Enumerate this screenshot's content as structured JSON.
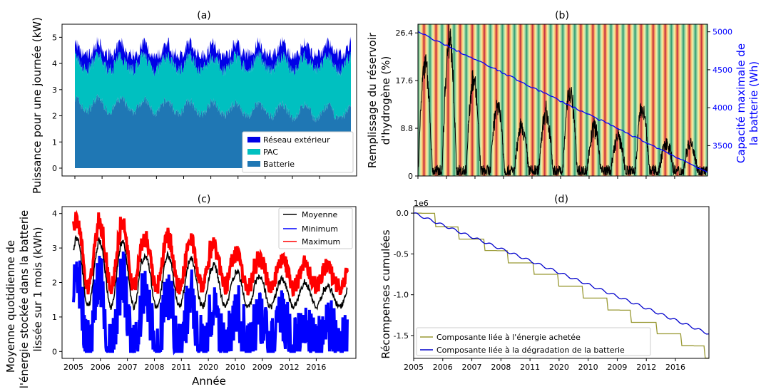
{
  "xlabel": "Année",
  "x_tick_labels": [
    "2005",
    "2006",
    "2007",
    "2008",
    "2011",
    "2020",
    "2010",
    "2009",
    "2012",
    "2016"
  ],
  "colors": {
    "reseau": "#0000e6",
    "pac": "#00c0c0",
    "batterie": "#1f77b4",
    "moyenne": "#000000",
    "minimum": "#0000ff",
    "maximum": "#ff0000",
    "energie": "#999933",
    "degradation": "#0000cc",
    "capacite": "#0000ff"
  },
  "chart_data": [
    {
      "id": "a",
      "type": "area",
      "title": "(a)",
      "ylabel": "Puissance pour une journée (kW)",
      "ylim": [
        -0.3,
        5.5
      ],
      "yticks": [
        "0",
        "1",
        "2",
        "3",
        "4",
        "5"
      ],
      "x_range_years": [
        0,
        12
      ],
      "legend_placement": "lower-right",
      "series": [
        {
          "name": "Réseau extérieur",
          "band": [
            4.4,
            5.0
          ]
        },
        {
          "name": "PAC",
          "band": [
            2.3,
            4.4
          ]
        },
        {
          "name": "Batterie",
          "band": [
            0,
            2.6
          ]
        }
      ]
    },
    {
      "id": "b",
      "type": "line",
      "title": "(b)",
      "ylabel": "Remplissage du réservoir\nd'hydrogène (%)",
      "ylabel_lines": [
        "Remplissage du réservoir",
        "d'hydrogène (%)"
      ],
      "ylim": [
        0,
        28
      ],
      "yticks": [
        "0",
        "8.8",
        "17.6",
        "26.4"
      ],
      "y2label_lines": [
        "Capacité maximale de",
        "la batterie (Wh)"
      ],
      "y2lim": [
        3100,
        5100
      ],
      "y2ticks": [
        "3500",
        "4000",
        "4500",
        "5000"
      ],
      "background": "seasonal-colormap-stripes",
      "series": [
        {
          "name": "Remplissage",
          "yearly_peaks": [
            22,
            27,
            19,
            14,
            9,
            12,
            17,
            9,
            7,
            13,
            6
          ]
        },
        {
          "name": "Capacité",
          "start": 5000,
          "end": 3150
        }
      ]
    },
    {
      "id": "c",
      "type": "line",
      "title": "(c)",
      "ylabel_lines": [
        "Moyenne quotidienne de",
        "l'énergie stockée dans la batterie",
        "lissée sur 1 mois (kWh)"
      ],
      "ylim": [
        -0.2,
        4.2
      ],
      "yticks": [
        "0",
        "1",
        "2",
        "3",
        "4"
      ],
      "legend_placement": "top-right",
      "series": [
        {
          "name": "Moyenne",
          "yearly_peaks": [
            3.3,
            3.2,
            3.2,
            2.8,
            2.8,
            2.7,
            2.5,
            2.3,
            2.2,
            2.1,
            2.0,
            1.9
          ]
        },
        {
          "name": "Minimum"
        },
        {
          "name": "Maximum"
        }
      ]
    },
    {
      "id": "d",
      "type": "line",
      "title": "(d)",
      "ylabel": "Récompenses cumulées",
      "offset_label": "1e6",
      "ylim": [
        -1.78,
        0.08
      ],
      "yticks": [
        "0.0",
        "-0.5",
        "-1.0",
        "-1.5"
      ],
      "legend_placement": "lower-left",
      "series": [
        {
          "name": "Composante liée à l'énergie achetée",
          "start": 0,
          "end": -1.75
        },
        {
          "name": "Composante liée à la dégradation de la batterie",
          "start": 0,
          "end": -1.48
        }
      ]
    }
  ]
}
